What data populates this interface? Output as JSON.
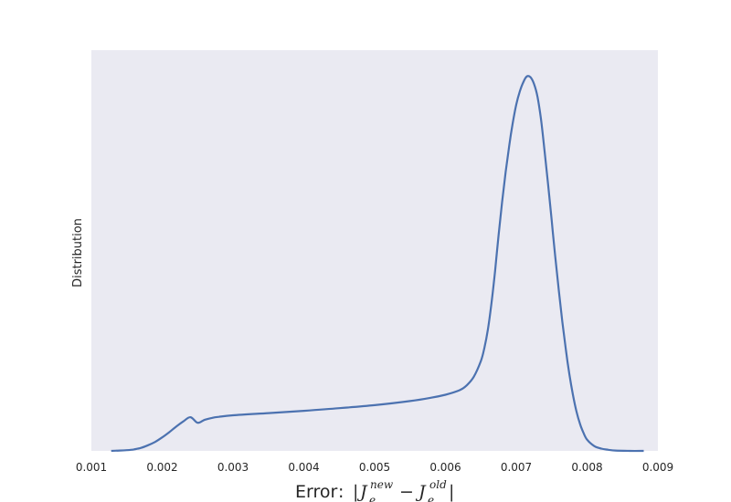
{
  "chart_data": {
    "type": "line",
    "kind": "kde",
    "ylabel": "Distribution",
    "xlabel": {
      "prefix": "Error",
      "colon": ":",
      "bar_open": "|",
      "bar_close": "|",
      "j": "J",
      "sub": "e",
      "sup_new": "new",
      "minus": "−",
      "sup_old": "old"
    },
    "xlim": [
      0.001,
      0.009
    ],
    "ylim": [
      0,
      1.07
    ],
    "grid": false,
    "yticks_visible": false,
    "background": "#eaeaf2",
    "line_color": "#4c72b0",
    "xtick_labels": [
      "0.001",
      "0.002",
      "0.003",
      "0.004",
      "0.005",
      "0.006",
      "0.007",
      "0.008",
      "0.009"
    ],
    "series": [
      {
        "x": [
          0.00128,
          0.0014,
          0.0015,
          0.0016,
          0.0017,
          0.0018,
          0.0019,
          0.002,
          0.0021,
          0.0022,
          0.0023,
          0.0024,
          0.0025,
          0.0026,
          0.0027,
          0.0028,
          0.003,
          0.0035,
          0.004,
          0.0045,
          0.005,
          0.0055,
          0.0058,
          0.006,
          0.0062,
          0.0063,
          0.0064,
          0.0065,
          0.00655,
          0.0066,
          0.00665,
          0.0067,
          0.00675,
          0.0068,
          0.00685,
          0.0069,
          0.00695,
          0.007,
          0.00705,
          0.0071,
          0.00715,
          0.0072,
          0.00725,
          0.0073,
          0.00735,
          0.0074,
          0.00745,
          0.0075,
          0.00755,
          0.0076,
          0.00765,
          0.0077,
          0.00775,
          0.0078,
          0.00785,
          0.0079,
          0.00795,
          0.008,
          0.0081,
          0.0082,
          0.0083,
          0.0084,
          0.0086,
          0.0088
        ],
        "y": [
          0.0,
          0.001,
          0.002,
          0.004,
          0.008,
          0.015,
          0.024,
          0.036,
          0.05,
          0.065,
          0.079,
          0.09,
          0.075,
          0.083,
          0.088,
          0.091,
          0.095,
          0.101,
          0.107,
          0.114,
          0.122,
          0.133,
          0.142,
          0.15,
          0.162,
          0.175,
          0.198,
          0.24,
          0.275,
          0.325,
          0.395,
          0.48,
          0.575,
          0.665,
          0.745,
          0.815,
          0.875,
          0.925,
          0.96,
          0.985,
          1.0,
          0.998,
          0.98,
          0.945,
          0.885,
          0.8,
          0.71,
          0.615,
          0.52,
          0.43,
          0.345,
          0.27,
          0.205,
          0.15,
          0.105,
          0.072,
          0.048,
          0.03,
          0.013,
          0.006,
          0.003,
          0.001,
          0.0,
          0.0
        ]
      }
    ]
  }
}
